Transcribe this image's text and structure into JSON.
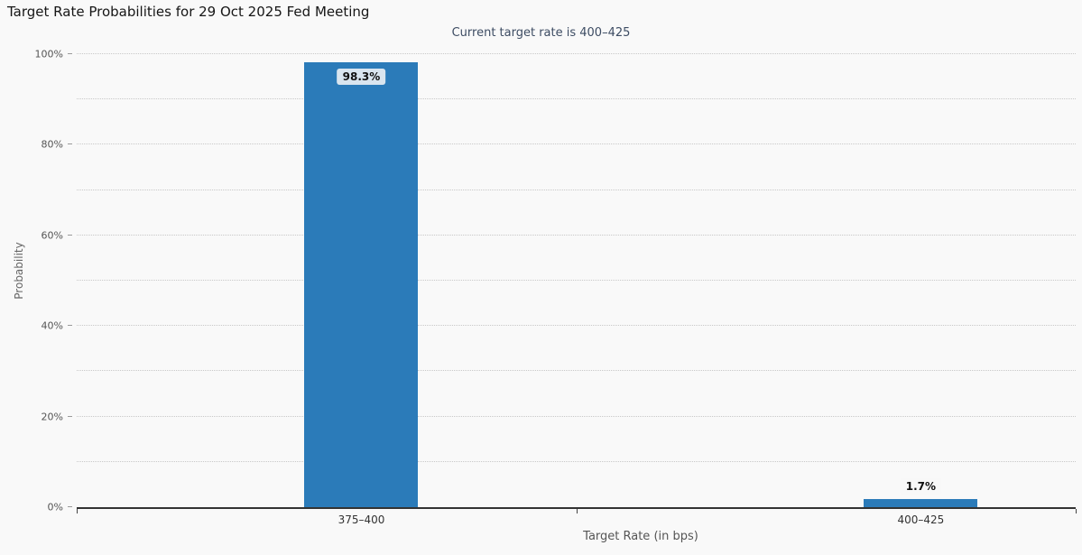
{
  "chart_data": {
    "type": "bar",
    "title": "Target Rate Probabilities for 29 Oct 2025 Fed Meeting",
    "subtitle": "Current target rate is 400–425",
    "categories": [
      "375–400",
      "400–425"
    ],
    "values": [
      98.3,
      1.7
    ],
    "value_labels": [
      "98.3%",
      "1.7%"
    ],
    "xlabel": "Target Rate (in bps)",
    "ylabel": "Probability",
    "ylim": [
      0,
      100
    ],
    "ytick_step": 10,
    "ylabel_step": 20,
    "ytick_labels": [
      "0%",
      "20%",
      "40%",
      "60%",
      "80%",
      "100%"
    ],
    "grid": "dotted-horizontal",
    "legend": "none",
    "bar_color": "#2b7bb9",
    "background": "#f9f9f9"
  }
}
